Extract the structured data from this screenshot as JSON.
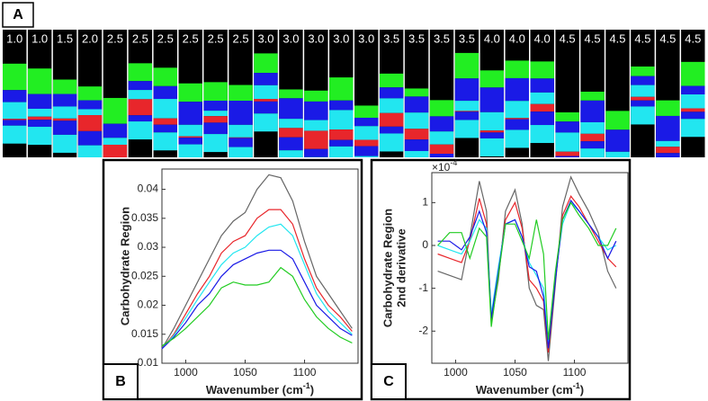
{
  "panel_a": {
    "label": "A",
    "tiles": [
      "1.0",
      "1.0",
      "1.5",
      "2.0",
      "2.5",
      "2.5",
      "2.5",
      "2.5",
      "2.5",
      "2.5",
      "3.0",
      "3.0",
      "3.0",
      "3.0",
      "3.0",
      "3.5",
      "3.5",
      "3.5",
      "3.5",
      "4.0",
      "4.0",
      "4.0",
      "4.5",
      "4.5",
      "4.5",
      "4.5",
      "4.5",
      "4.5"
    ]
  },
  "chart_data": [
    {
      "type": "line",
      "panel_label": "B",
      "y_label": [
        "Carbohydrate Region"
      ],
      "x_label": "Wavenumber (cm",
      "x_label_sup": "-1",
      "x_label_end": ")",
      "x": [
        980,
        990,
        1000,
        1010,
        1020,
        1030,
        1040,
        1050,
        1060,
        1070,
        1080,
        1090,
        1100,
        1110,
        1120,
        1130,
        1140
      ],
      "xlim": [
        980,
        1145
      ],
      "xticks": [
        1000,
        1050,
        1100
      ],
      "ylim": [
        0.01,
        0.0435
      ],
      "yticks": [
        0.01,
        0.015,
        0.02,
        0.025,
        0.03,
        0.035,
        0.04
      ],
      "series": [
        {
          "color": "#666666",
          "values": [
            0.0125,
            0.016,
            0.02,
            0.024,
            0.028,
            0.032,
            0.0345,
            0.036,
            0.04,
            0.0425,
            0.042,
            0.038,
            0.031,
            0.025,
            0.022,
            0.019,
            0.016
          ]
        },
        {
          "color": "#e8262b",
          "values": [
            0.0125,
            0.015,
            0.0185,
            0.022,
            0.025,
            0.029,
            0.031,
            0.032,
            0.035,
            0.0365,
            0.0365,
            0.034,
            0.028,
            0.023,
            0.02,
            0.018,
            0.0155
          ]
        },
        {
          "color": "#22e6f0",
          "values": [
            0.0125,
            0.0148,
            0.0178,
            0.021,
            0.024,
            0.027,
            0.029,
            0.03,
            0.032,
            0.0335,
            0.034,
            0.032,
            0.027,
            0.022,
            0.019,
            0.017,
            0.015
          ]
        },
        {
          "color": "#1a1ae6",
          "values": [
            0.0125,
            0.0145,
            0.017,
            0.02,
            0.022,
            0.025,
            0.027,
            0.028,
            0.029,
            0.0295,
            0.0295,
            0.028,
            0.024,
            0.02,
            0.018,
            0.016,
            0.0148
          ]
        },
        {
          "color": "#22cc22",
          "values": [
            0.013,
            0.0143,
            0.016,
            0.018,
            0.02,
            0.023,
            0.024,
            0.0235,
            0.0235,
            0.024,
            0.0265,
            0.025,
            0.021,
            0.018,
            0.016,
            0.0145,
            0.0135
          ]
        }
      ]
    },
    {
      "type": "line",
      "panel_label": "C",
      "y_label": [
        "Carbohydrate Region",
        "2nd derivative"
      ],
      "y_multiplier": "×10",
      "y_multiplier_exp": "-4",
      "x_label": "Wavenumber (cm",
      "x_label_sup": "-1",
      "x_label_end": ")",
      "x": [
        985,
        995,
        1005,
        1012,
        1020,
        1026,
        1030,
        1036,
        1042,
        1050,
        1056,
        1062,
        1068,
        1074,
        1078,
        1084,
        1090,
        1097,
        1104,
        1112,
        1120,
        1128,
        1135
      ],
      "xlim": [
        980,
        1145
      ],
      "xticks": [
        1000,
        1050,
        1100
      ],
      "ylim": [
        -2.75,
        1.7
      ],
      "yticks": [
        -2,
        -1,
        0,
        1
      ],
      "series": [
        {
          "color": "#666666",
          "values": [
            -0.6,
            -0.7,
            -0.8,
            0.2,
            1.5,
            0.8,
            -1.8,
            -0.8,
            0.8,
            1.3,
            0.5,
            -1.0,
            -1.4,
            -1.5,
            -2.7,
            -0.9,
            0.9,
            1.6,
            1.2,
            0.8,
            0.3,
            -0.6,
            -1.0
          ]
        },
        {
          "color": "#e8262b",
          "values": [
            -0.2,
            -0.3,
            -0.4,
            0.1,
            1.1,
            0.5,
            -1.7,
            -0.6,
            0.6,
            1.0,
            0.4,
            -0.8,
            -1.0,
            -1.3,
            -2.5,
            -0.8,
            0.7,
            1.15,
            0.9,
            0.5,
            0.1,
            -0.3,
            -0.5
          ]
        },
        {
          "color": "#22e6f0",
          "values": [
            0,
            -0.1,
            -0.2,
            0.1,
            0.6,
            0.4,
            -1.6,
            -0.5,
            0.5,
            0.6,
            0.2,
            -0.4,
            -0.7,
            -1.0,
            -2.3,
            -0.7,
            0.5,
            1.0,
            0.8,
            0.5,
            0.2,
            -0.1,
            0
          ]
        },
        {
          "color": "#1a1ae6",
          "values": [
            0.1,
            0.1,
            -0.1,
            0.2,
            0.8,
            0.3,
            -1.7,
            -0.6,
            0.5,
            0.6,
            0.2,
            -0.5,
            -0.6,
            -1.2,
            -2.4,
            -0.8,
            0.6,
            1.05,
            0.8,
            0.5,
            0.2,
            -0.3,
            0.1
          ]
        },
        {
          "color": "#22cc22",
          "values": [
            0,
            0.3,
            0.3,
            -0.3,
            0.4,
            0.2,
            -1.9,
            -0.7,
            0.5,
            0.5,
            0.1,
            -0.3,
            0.6,
            -0.2,
            -2.2,
            -0.6,
            0.6,
            1.0,
            0.7,
            0.4,
            0,
            0,
            0.4
          ]
        }
      ]
    }
  ]
}
